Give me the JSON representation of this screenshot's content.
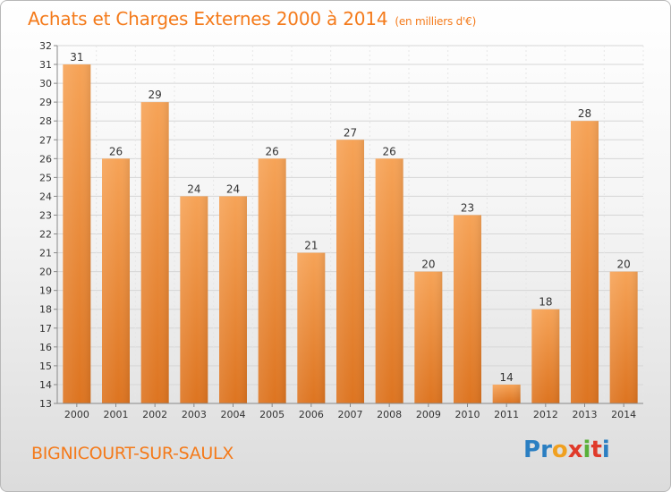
{
  "header": {
    "title": "Achats et Charges Externes 2000 à 2014",
    "subtitle": "(en milliers d'€)"
  },
  "footer": {
    "city": "BIGNICOURT-SUR-SAULX",
    "logo_text": "Proxiti",
    "logo_letters": [
      {
        "char": "P",
        "color": "#2b7fc2"
      },
      {
        "char": "r",
        "color": "#2b7fc2"
      },
      {
        "char": "o",
        "color": "#f0a020"
      },
      {
        "char": "x",
        "color": "#e03a2a"
      },
      {
        "char": "i",
        "color": "#59b03a"
      },
      {
        "char": "t",
        "color": "#e03a2a"
      },
      {
        "char": "i",
        "color": "#2b7fc2"
      }
    ]
  },
  "colors": {
    "accent": "#f47a1a",
    "bar_light": "#f6a357",
    "bar_dark": "#e27a22",
    "grid": "#d6d6d6"
  },
  "chart_data": {
    "type": "bar",
    "title": "Achats et Charges Externes 2000 à 2014",
    "subtitle": "(en milliers d'€)",
    "xlabel": "",
    "ylabel": "",
    "categories": [
      "2000",
      "2001",
      "2002",
      "2003",
      "2004",
      "2005",
      "2006",
      "2007",
      "2008",
      "2009",
      "2010",
      "2011",
      "2012",
      "2013",
      "2014"
    ],
    "values": [
      31,
      26,
      29,
      24,
      24,
      26,
      21,
      27,
      26,
      20,
      23,
      14,
      18,
      28,
      20
    ],
    "ylim": [
      13,
      32
    ],
    "yticks": [
      13,
      14,
      15,
      16,
      17,
      18,
      19,
      20,
      21,
      22,
      23,
      24,
      25,
      26,
      27,
      28,
      29,
      30,
      31,
      32
    ],
    "grid": true,
    "data_labels": true
  }
}
